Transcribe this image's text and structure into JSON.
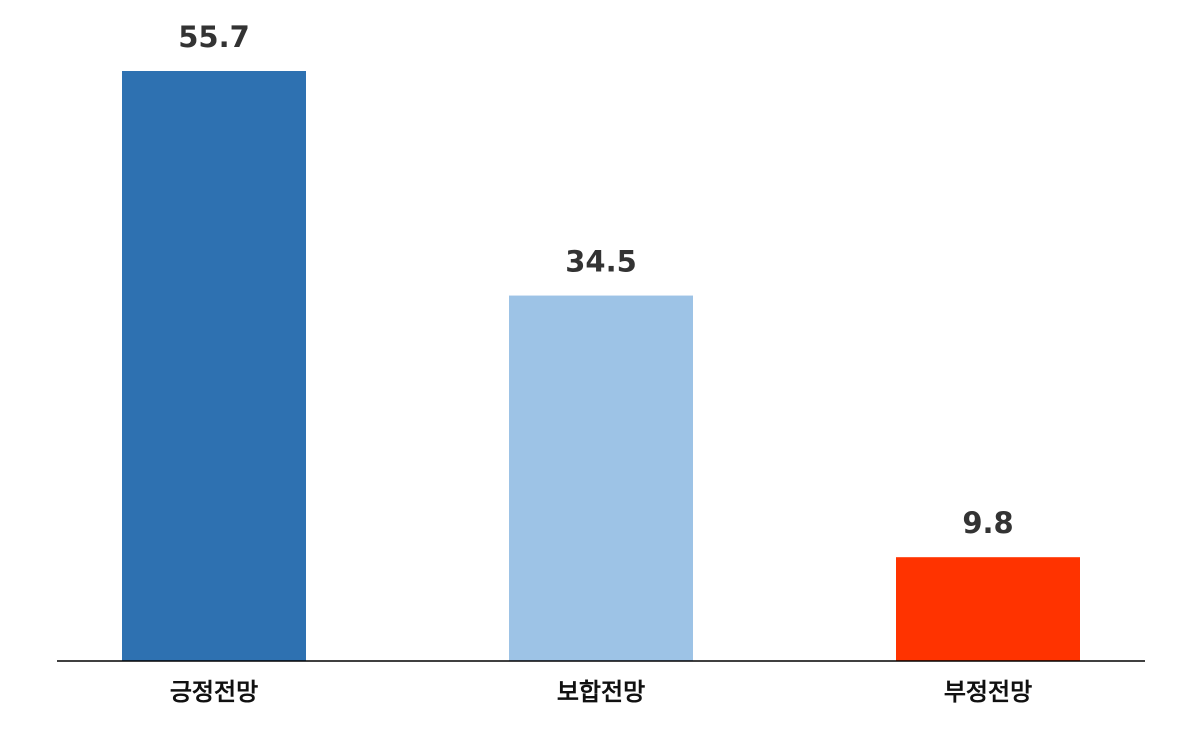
{
  "chart_data": {
    "type": "bar",
    "categories": [
      "긍정전망",
      "보합전망",
      "부정전망"
    ],
    "values": [
      55.7,
      34.5,
      9.8
    ],
    "colors": [
      "#2e71b1",
      "#9dc3e6",
      "#ff3300"
    ]
  }
}
